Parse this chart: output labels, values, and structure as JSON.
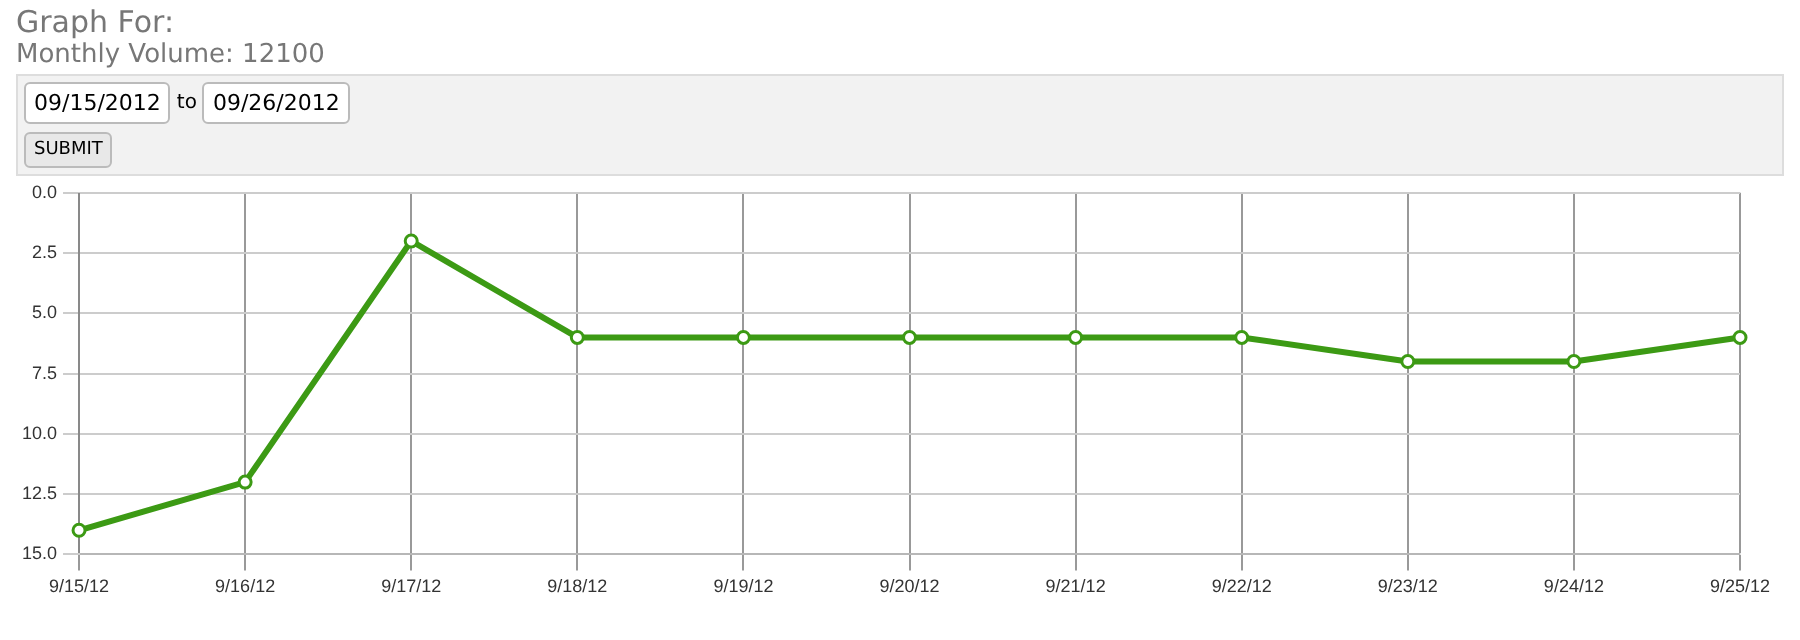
{
  "chart_data": {
    "type": "line",
    "title": "Graph For:",
    "subtitle": "Monthly Volume: 12100",
    "annotations": [
      "09/15/2012",
      "to",
      "09/26/2012",
      "SUBMIT"
    ],
    "categories": [
      "9/15/12",
      "9/16/12",
      "9/17/12",
      "9/18/12",
      "9/19/12",
      "9/20/12",
      "9/21/12",
      "9/22/12",
      "9/23/12",
      "9/24/12",
      "9/25/12"
    ],
    "series": [
      {
        "color": "#3c9a14",
        "values": [
          14,
          12,
          2,
          6,
          6,
          6,
          6,
          6,
          7,
          7,
          6
        ]
      }
    ],
    "ylim": [
      15,
      0
    ],
    "yticks": [
      {
        "value": 0,
        "label": "0.0"
      },
      {
        "value": 2.5,
        "label": "2.5"
      },
      {
        "value": 5,
        "label": "5.0"
      },
      {
        "value": 7.5,
        "label": "7.5"
      },
      {
        "value": 10,
        "label": "10.0"
      },
      {
        "value": 12.5,
        "label": "12.5"
      },
      {
        "value": 15,
        "label": "15.0"
      }
    ],
    "grid": true,
    "marker": "circle",
    "line_style": "solid"
  }
}
